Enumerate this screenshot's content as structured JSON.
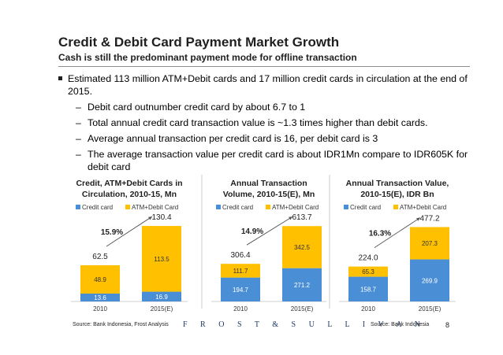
{
  "header": {
    "title": "Credit & Debit Card Payment Market Growth",
    "subtitle": "Cash is still the predominant payment mode for offline transaction"
  },
  "bullets": {
    "main": "Estimated 113 million ATM+Debit cards and 17 million credit cards in circulation at the end of 2015.",
    "subs": [
      "Debit card outnumber credit card by about 6.7 to 1",
      "Total annual credit card transaction value is ~1.3 times higher than debit cards.",
      "Average annual transaction per credit card is 16, per debit card is 3",
      "The average transaction value per credit card is about IDR1Mn compare to IDR605K for debit card"
    ]
  },
  "footer": {
    "source_left": "Source: Bank Indonesia, Frost Analysis",
    "logo": "F R O S T & S U L L I V A N",
    "source_right": "Source: Bank Indonesia",
    "page": "8"
  },
  "colors": {
    "credit": "#4a8fd6",
    "debit": "#ffc000"
  },
  "chart_data": [
    {
      "type": "bar",
      "stacked": true,
      "title": "Credit, ATM+Debit Cards in Circulation, 2010-15, Mn",
      "title_lines": [
        "Credit, ATM+Debit Cards in",
        "Circulation, 2010-15, Mn"
      ],
      "categories": [
        "2010",
        "2015(E)"
      ],
      "series": [
        {
          "name": "Credit card",
          "values": [
            13.6,
            16.9
          ]
        },
        {
          "name": "ATM+Debit Card",
          "values": [
            48.9,
            113.5
          ]
        }
      ],
      "totals": [
        "62.5",
        "130.4"
      ],
      "cagr": "15.9%",
      "ylim": [
        0,
        140
      ]
    },
    {
      "type": "bar",
      "stacked": true,
      "title": "Annual Transaction Volume, 2010-15(E), Mn",
      "title_lines": [
        "Annual Transaction",
        "Volume, 2010-15(E), Mn"
      ],
      "categories": [
        "2010",
        "2015(E)"
      ],
      "series": [
        {
          "name": "Credit card",
          "values": [
            194.7,
            271.2
          ]
        },
        {
          "name": "ATM+Debit Card",
          "values": [
            111.7,
            342.5
          ]
        }
      ],
      "totals": [
        "306.4",
        "613.7"
      ],
      "cagr": "14.9%",
      "ylim": [
        0,
        660
      ]
    },
    {
      "type": "bar",
      "stacked": true,
      "title": "Annual Transaction Value, 2010-15(E), IDR Bn",
      "title_lines": [
        "Annual Transaction Value,",
        "2010-15(E), IDR Bn"
      ],
      "categories": [
        "2010",
        "2015(E)"
      ],
      "series": [
        {
          "name": "Credit card",
          "values": [
            158.7,
            269.9
          ]
        },
        {
          "name": "ATM+Debit Card",
          "values": [
            65.3,
            207.3
          ]
        }
      ],
      "totals": [
        "224.0",
        "477.2"
      ],
      "cagr": "16.3%",
      "ylim": [
        0,
        520
      ]
    }
  ]
}
